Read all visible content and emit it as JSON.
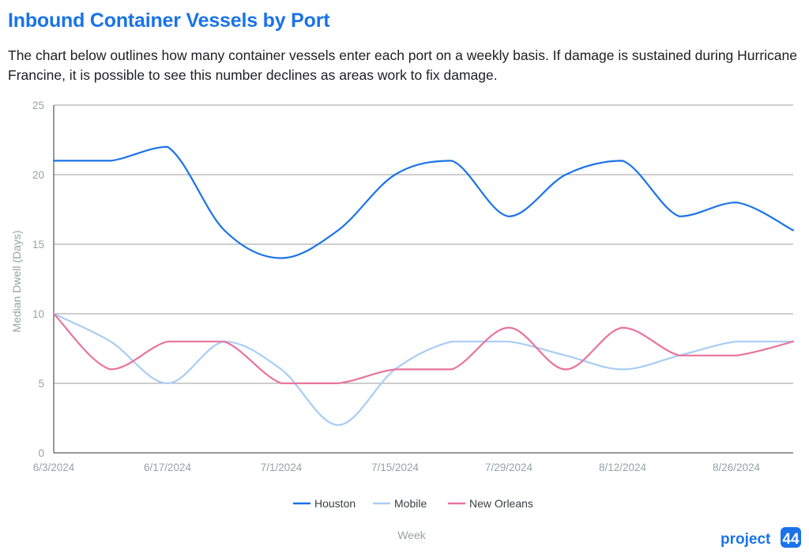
{
  "header": {
    "title": "Inbound Container Vessels by Port",
    "subtitle": "The chart below outlines how many container vessels enter each port on a weekly basis. If damage is sustained during Hurricane Francine, it is possible to see this number declines as areas work to fix damage."
  },
  "chart_data": {
    "type": "line",
    "title": "Inbound Container Vessels by Port",
    "xlabel": "Week",
    "ylabel": "Median Dwell (Days)",
    "ylim": [
      0,
      25
    ],
    "yticks": [
      0,
      5,
      10,
      15,
      20,
      25
    ],
    "x": [
      "6/3/2024",
      "6/10/2024",
      "6/17/2024",
      "6/24/2024",
      "7/1/2024",
      "7/8/2024",
      "7/15/2024",
      "7/22/2024",
      "7/29/2024",
      "8/5/2024",
      "8/12/2024",
      "8/19/2024",
      "8/26/2024",
      "9/2/2024"
    ],
    "xtick_labels": [
      "6/3/2024",
      "6/17/2024",
      "7/1/2024",
      "7/15/2024",
      "7/29/2024",
      "8/12/2024",
      "8/26/2024"
    ],
    "grid": true,
    "legend_position": "bottom",
    "series": [
      {
        "name": "Houston",
        "color": "#1a73e8",
        "values": [
          21,
          21,
          22,
          16,
          14,
          16,
          20,
          21,
          17,
          20,
          21,
          17,
          18,
          16
        ]
      },
      {
        "name": "Mobile",
        "color": "#a8cdf4",
        "values": [
          10,
          8,
          5,
          8,
          6,
          2,
          6,
          8,
          8,
          7,
          6,
          7,
          8,
          8
        ]
      },
      {
        "name": "New Orleans",
        "color": "#e8749e",
        "values": [
          10,
          6,
          8,
          8,
          5,
          5,
          6,
          6,
          9,
          6,
          9,
          7,
          7,
          8
        ]
      }
    ]
  },
  "branding": {
    "logo_text": "project",
    "logo_number": "44"
  }
}
